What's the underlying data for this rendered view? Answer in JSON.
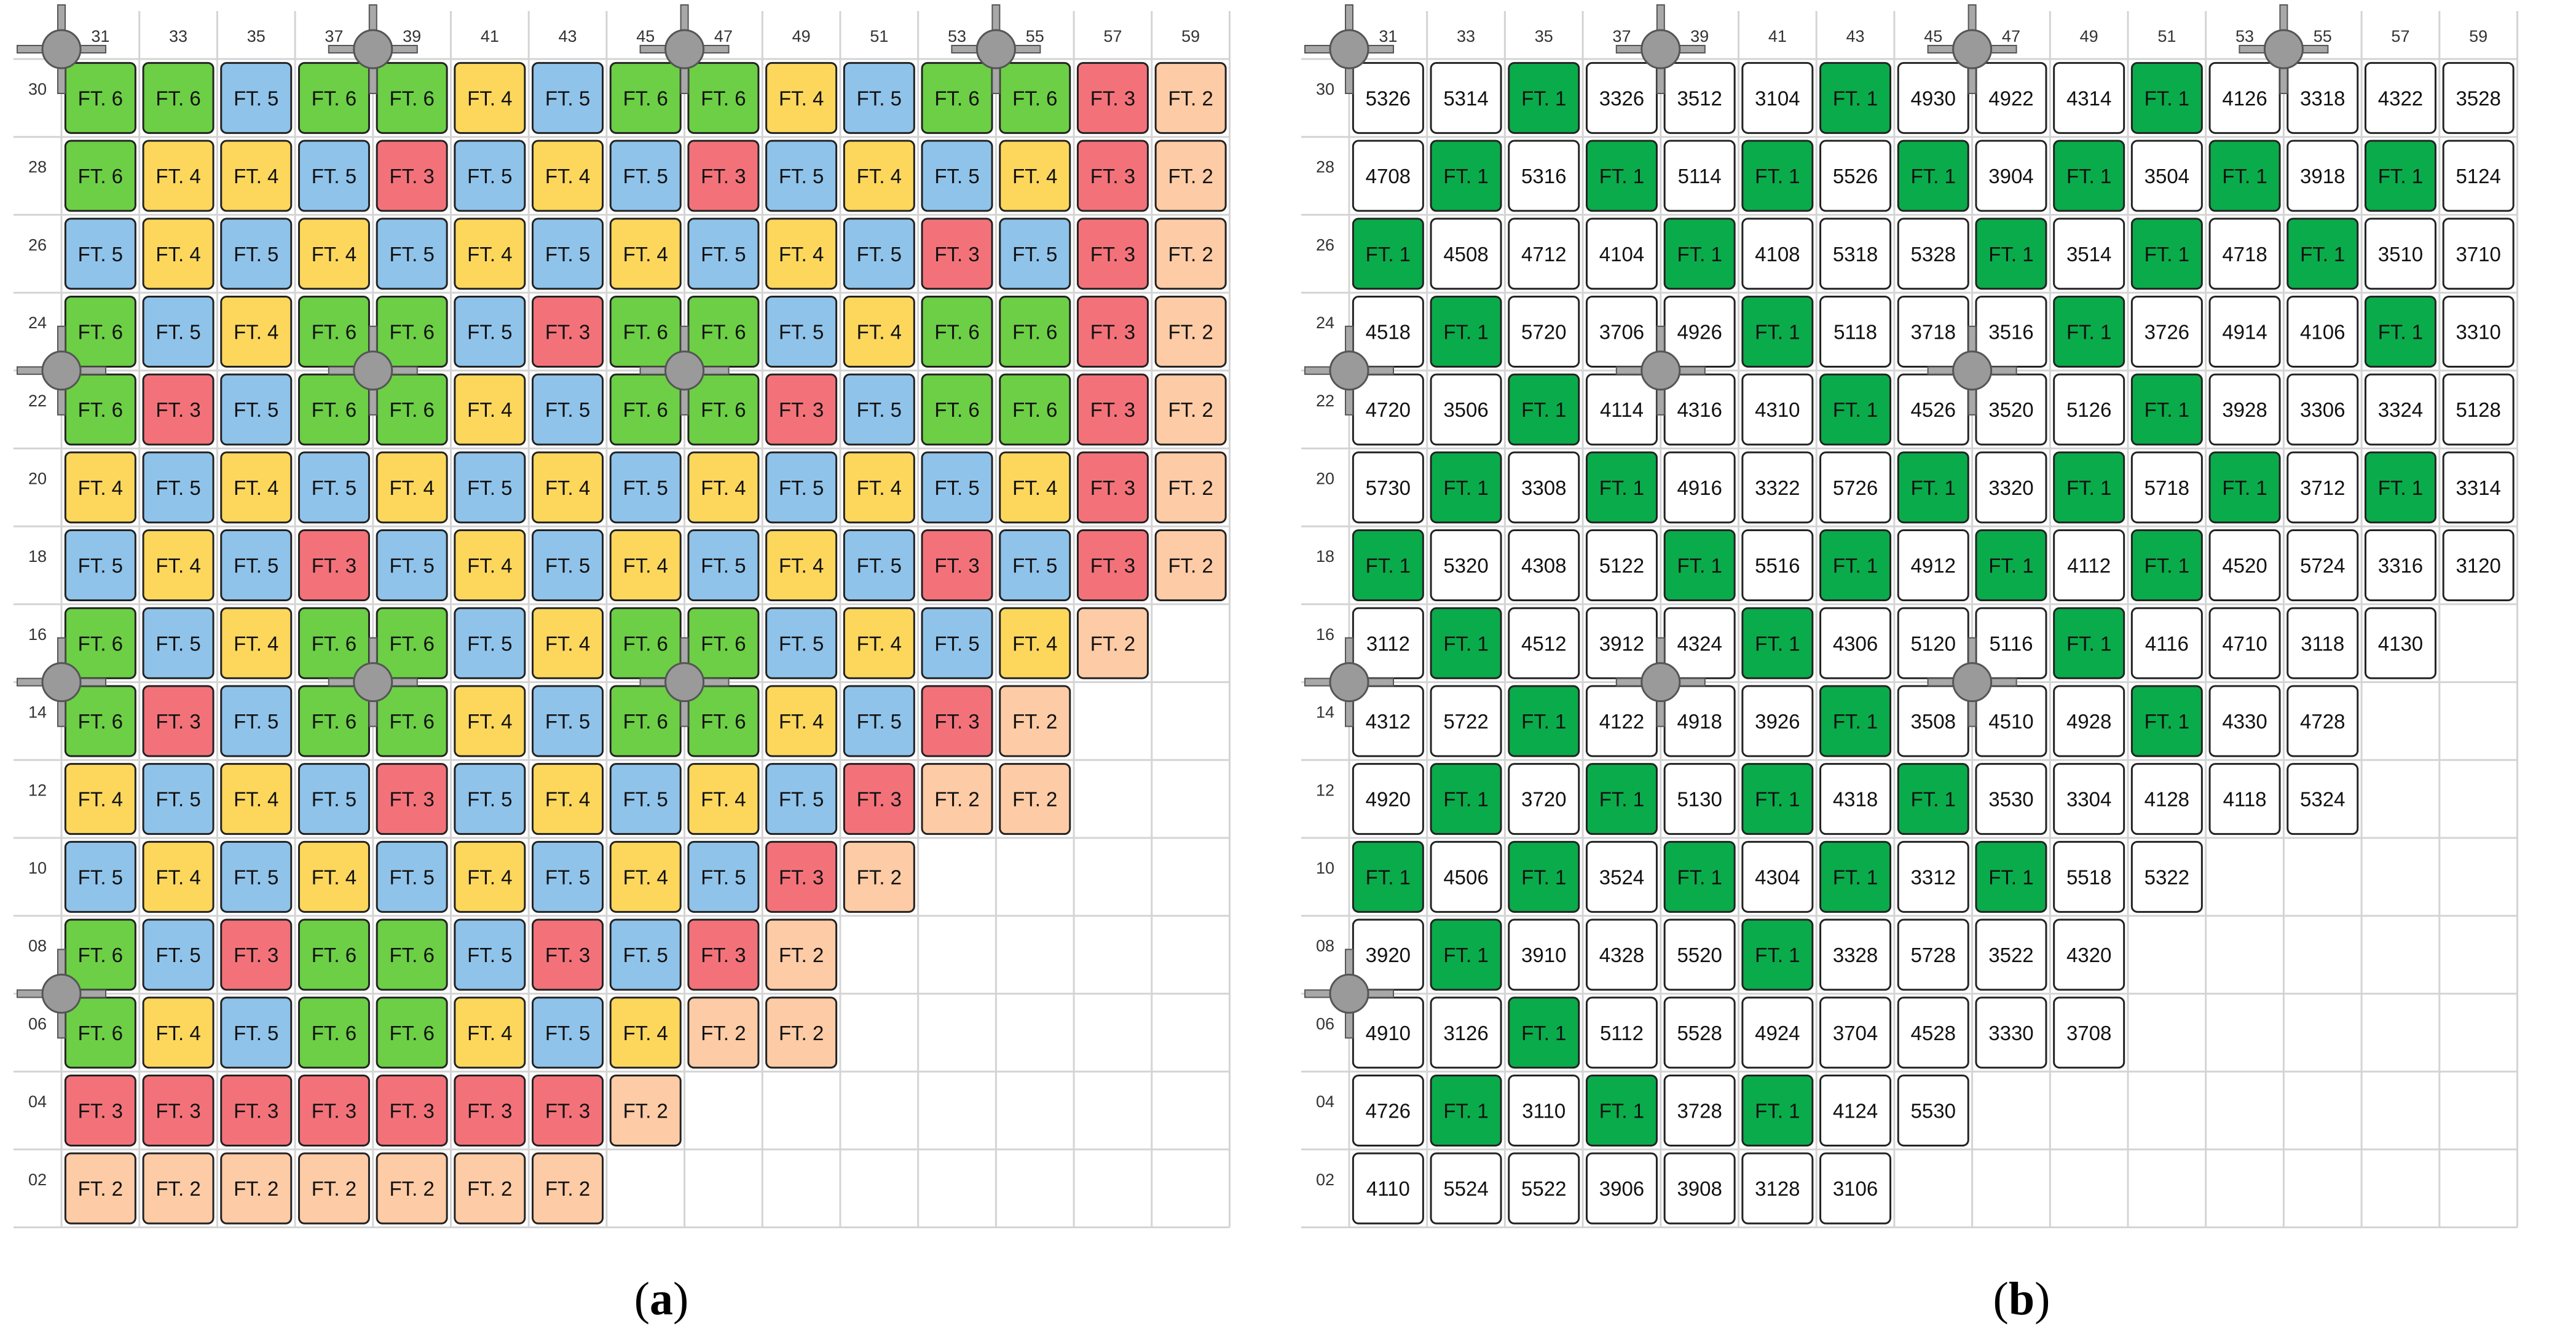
{
  "colors": {
    "FT. 1": "#0aab4a",
    "FT. 2": "#fdcba5",
    "FT. 3": "#f3727a",
    "FT. 4": "#fcd75c",
    "FT. 5": "#8fc3ea",
    "FT. 6": "#6ccf45",
    "empty": "#ffffff",
    "grid": "#d4d4d4",
    "post": "#9a9a9a"
  },
  "columns": [
    "31",
    "33",
    "35",
    "37",
    "39",
    "41",
    "43",
    "45",
    "47",
    "49",
    "51",
    "53",
    "55",
    "57",
    "59"
  ],
  "rows": [
    "30",
    "28",
    "26",
    "24",
    "22",
    "20",
    "18",
    "16",
    "14",
    "12",
    "10",
    "08",
    "06",
    "04",
    "02"
  ],
  "panels": [
    {
      "label": "a",
      "cells": [
        [
          "FT. 6",
          "FT. 6",
          "FT. 5",
          "FT. 6",
          "FT. 6",
          "FT. 4",
          "FT. 5",
          "FT. 6",
          "FT. 6",
          "FT. 4",
          "FT. 5",
          "FT. 6",
          "FT. 6",
          "FT. 3",
          "FT. 2"
        ],
        [
          "FT. 6",
          "FT. 4",
          "FT. 4",
          "FT. 5",
          "FT. 3",
          "FT. 5",
          "FT. 4",
          "FT. 5",
          "FT. 3",
          "FT. 5",
          "FT. 4",
          "FT. 5",
          "FT. 4",
          "FT. 3",
          "FT. 2"
        ],
        [
          "FT. 5",
          "FT. 4",
          "FT. 5",
          "FT. 4",
          "FT. 5",
          "FT. 4",
          "FT. 5",
          "FT. 4",
          "FT. 5",
          "FT. 4",
          "FT. 5",
          "FT. 3",
          "FT. 5",
          "FT. 3",
          "FT. 2"
        ],
        [
          "FT. 6",
          "FT. 5",
          "FT. 4",
          "FT. 6",
          "FT. 6",
          "FT. 5",
          "FT. 3",
          "FT. 6",
          "FT. 6",
          "FT. 5",
          "FT. 4",
          "FT. 6",
          "FT. 6",
          "FT. 3",
          "FT. 2"
        ],
        [
          "FT. 6",
          "FT. 3",
          "FT. 5",
          "FT. 6",
          "FT. 6",
          "FT. 4",
          "FT. 5",
          "FT. 6",
          "FT. 6",
          "FT. 3",
          "FT. 5",
          "FT. 6",
          "FT. 6",
          "FT. 3",
          "FT. 2"
        ],
        [
          "FT. 4",
          "FT. 5",
          "FT. 4",
          "FT. 5",
          "FT. 4",
          "FT. 5",
          "FT. 4",
          "FT. 5",
          "FT. 4",
          "FT. 5",
          "FT. 4",
          "FT. 5",
          "FT. 4",
          "FT. 3",
          "FT. 2"
        ],
        [
          "FT. 5",
          "FT. 4",
          "FT. 5",
          "FT. 3",
          "FT. 5",
          "FT. 4",
          "FT. 5",
          "FT. 4",
          "FT. 5",
          "FT. 4",
          "FT. 5",
          "FT. 3",
          "FT. 5",
          "FT. 3",
          "FT. 2"
        ],
        [
          "FT. 6",
          "FT. 5",
          "FT. 4",
          "FT. 6",
          "FT. 6",
          "FT. 5",
          "FT. 4",
          "FT. 6",
          "FT. 6",
          "FT. 5",
          "FT. 4",
          "FT. 5",
          "FT. 4",
          "FT. 2",
          ""
        ],
        [
          "FT. 6",
          "FT. 3",
          "FT. 5",
          "FT. 6",
          "FT. 6",
          "FT. 4",
          "FT. 5",
          "FT. 6",
          "FT. 6",
          "FT. 4",
          "FT. 5",
          "FT. 3",
          "FT. 2",
          "",
          ""
        ],
        [
          "FT. 4",
          "FT. 5",
          "FT. 4",
          "FT. 5",
          "FT. 3",
          "FT. 5",
          "FT. 4",
          "FT. 5",
          "FT. 4",
          "FT. 5",
          "FT. 3",
          "FT. 2",
          "FT. 2",
          "",
          ""
        ],
        [
          "FT. 5",
          "FT. 4",
          "FT. 5",
          "FT. 4",
          "FT. 5",
          "FT. 4",
          "FT. 5",
          "FT. 4",
          "FT. 5",
          "FT. 3",
          "FT. 2",
          "",
          "",
          "",
          ""
        ],
        [
          "FT. 6",
          "FT. 5",
          "FT. 3",
          "FT. 6",
          "FT. 6",
          "FT. 5",
          "FT. 3",
          "FT. 5",
          "FT. 3",
          "FT. 2",
          "",
          "",
          "",
          "",
          ""
        ],
        [
          "FT. 6",
          "FT. 4",
          "FT. 5",
          "FT. 6",
          "FT. 6",
          "FT. 4",
          "FT. 5",
          "FT. 4",
          "FT. 2",
          "FT. 2",
          "",
          "",
          "",
          "",
          ""
        ],
        [
          "FT. 3",
          "FT. 3",
          "FT. 3",
          "FT. 3",
          "FT. 3",
          "FT. 3",
          "FT. 3",
          "FT. 2",
          "",
          "",
          "",
          "",
          "",
          "",
          ""
        ],
        [
          "FT. 2",
          "FT. 2",
          "FT. 2",
          "FT. 2",
          "FT. 2",
          "FT. 2",
          "FT. 2",
          "",
          "",
          "",
          "",
          "",
          "",
          "",
          ""
        ]
      ]
    },
    {
      "label": "b",
      "cells": [
        [
          "5326",
          "5314",
          "FT. 1",
          "3326",
          "3512",
          "3104",
          "FT. 1",
          "4930",
          "4922",
          "4314",
          "FT. 1",
          "4126",
          "3318",
          "4322",
          "3528"
        ],
        [
          "4708",
          "FT. 1",
          "5316",
          "FT. 1",
          "5114",
          "FT. 1",
          "5526",
          "FT. 1",
          "3904",
          "FT. 1",
          "3504",
          "FT. 1",
          "3918",
          "FT. 1",
          "5124"
        ],
        [
          "FT. 1",
          "4508",
          "4712",
          "4104",
          "FT. 1",
          "4108",
          "5318",
          "5328",
          "FT. 1",
          "3514",
          "FT. 1",
          "4718",
          "FT. 1",
          "3510",
          "3710"
        ],
        [
          "4518",
          "FT. 1",
          "5720",
          "3706",
          "4926",
          "FT. 1",
          "5118",
          "3718",
          "3516",
          "FT. 1",
          "3726",
          "4914",
          "4106",
          "FT. 1",
          "3310"
        ],
        [
          "4720",
          "3506",
          "FT. 1",
          "4114",
          "4316",
          "4310",
          "FT. 1",
          "4526",
          "3520",
          "5126",
          "FT. 1",
          "3928",
          "3306",
          "3324",
          "5128"
        ],
        [
          "5730",
          "FT. 1",
          "3308",
          "FT. 1",
          "4916",
          "3322",
          "5726",
          "FT. 1",
          "3320",
          "FT. 1",
          "5718",
          "FT. 1",
          "3712",
          "FT. 1",
          "3314"
        ],
        [
          "FT. 1",
          "5320",
          "4308",
          "5122",
          "FT. 1",
          "5516",
          "FT. 1",
          "4912",
          "FT. 1",
          "4112",
          "FT. 1",
          "4520",
          "5724",
          "3316",
          "3120"
        ],
        [
          "3112",
          "FT. 1",
          "4512",
          "3912",
          "4324",
          "FT. 1",
          "4306",
          "5120",
          "5116",
          "FT. 1",
          "4116",
          "4710",
          "3118",
          "4130",
          ""
        ],
        [
          "4312",
          "5722",
          "FT. 1",
          "4122",
          "4918",
          "3926",
          "FT. 1",
          "3508",
          "4510",
          "4928",
          "FT. 1",
          "4330",
          "4728",
          "",
          ""
        ],
        [
          "4920",
          "FT. 1",
          "3720",
          "FT. 1",
          "5130",
          "FT. 1",
          "4318",
          "FT. 1",
          "3530",
          "3304",
          "4128",
          "4118",
          "5324",
          "",
          ""
        ],
        [
          "FT. 1",
          "4506",
          "FT. 1",
          "3524",
          "FT. 1",
          "4304",
          "FT. 1",
          "3312",
          "FT. 1",
          "5518",
          "5322",
          "",
          "",
          "",
          ""
        ],
        [
          "3920",
          "FT. 1",
          "3910",
          "4328",
          "5520",
          "FT. 1",
          "3328",
          "5728",
          "3522",
          "4320",
          "",
          "",
          "",
          "",
          ""
        ],
        [
          "4910",
          "3126",
          "FT. 1",
          "5112",
          "5528",
          "4924",
          "3704",
          "4528",
          "3330",
          "3708",
          "",
          "",
          "",
          "",
          ""
        ],
        [
          "4726",
          "FT. 1",
          "3110",
          "FT. 1",
          "3728",
          "FT. 1",
          "4124",
          "5530",
          "",
          "",
          "",
          "",
          "",
          "",
          ""
        ],
        [
          "4110",
          "5524",
          "5522",
          "3906",
          "3908",
          "3128",
          "3106",
          "",
          "",
          "",
          "",
          "",
          "",
          "",
          ""
        ]
      ]
    }
  ]
}
